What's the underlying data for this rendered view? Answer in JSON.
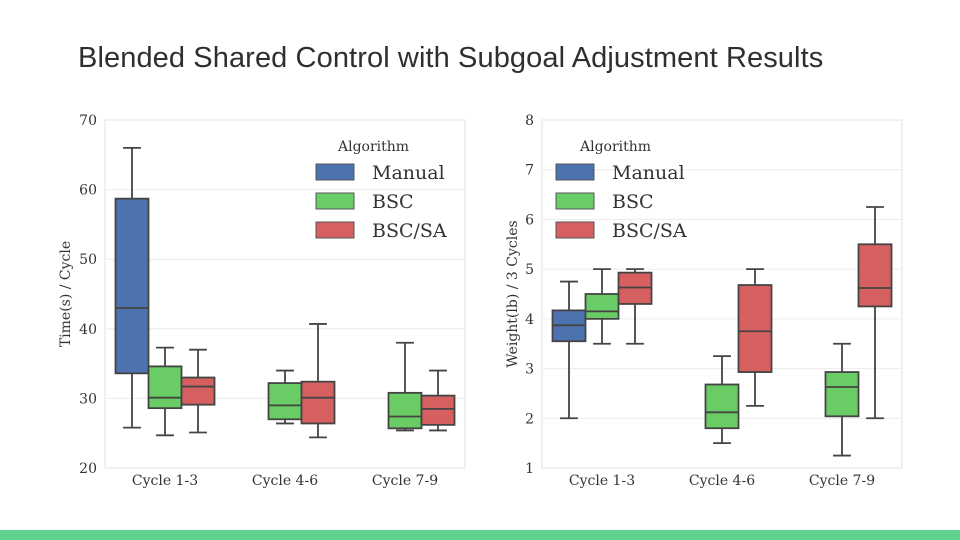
{
  "slide": {
    "title": "Blended Shared Control with Subgoal Adjustment Results",
    "accent_color": "#5fd28e"
  },
  "chart_data": [
    {
      "type": "box",
      "ylabel": "Time(s) / Cycle",
      "xlabel": "",
      "ylim": [
        20,
        70
      ],
      "yticks": [
        20,
        30,
        40,
        50,
        60,
        70
      ],
      "categories": [
        "Cycle 1-3",
        "Cycle 4-6",
        "Cycle 7-9"
      ],
      "legend": {
        "title": "Algorithm",
        "position": "top-right"
      },
      "series": [
        {
          "name": "Manual",
          "color": "#4c72b0",
          "boxes": [
            {
              "category": "Cycle 1-3",
              "min": 25.8,
              "q1": 33.6,
              "median": 43.0,
              "q3": 58.7,
              "max": 66.0
            }
          ]
        },
        {
          "name": "BSC",
          "color": "#6acc65",
          "boxes": [
            {
              "category": "Cycle 1-3",
              "min": 24.7,
              "q1": 28.6,
              "median": 30.1,
              "q3": 34.6,
              "max": 37.3
            },
            {
              "category": "Cycle 4-6",
              "min": 26.4,
              "q1": 27.0,
              "median": 29.0,
              "q3": 32.2,
              "max": 34.0
            },
            {
              "category": "Cycle 7-9",
              "min": 25.4,
              "q1": 25.7,
              "median": 27.4,
              "q3": 30.8,
              "max": 38.0
            }
          ]
        },
        {
          "name": "BSC/SA",
          "color": "#d65f5f",
          "boxes": [
            {
              "category": "Cycle 1-3",
              "min": 25.1,
              "q1": 29.1,
              "median": 31.7,
              "q3": 33.0,
              "max": 37.0
            },
            {
              "category": "Cycle 4-6",
              "min": 24.4,
              "q1": 26.4,
              "median": 30.1,
              "q3": 32.4,
              "max": 40.7
            },
            {
              "category": "Cycle 7-9",
              "min": 25.4,
              "q1": 26.2,
              "median": 28.5,
              "q3": 30.4,
              "max": 34.0
            }
          ]
        }
      ]
    },
    {
      "type": "box",
      "ylabel": "Weight(lb) / 3 Cycles",
      "xlabel": "",
      "ylim": [
        1,
        8
      ],
      "yticks": [
        1,
        2,
        3,
        4,
        5,
        6,
        7,
        8
      ],
      "categories": [
        "Cycle 1-3",
        "Cycle 4-6",
        "Cycle 7-9"
      ],
      "legend": {
        "title": "Algorithm",
        "position": "top-left"
      },
      "series": [
        {
          "name": "Manual",
          "color": "#4c72b0",
          "boxes": [
            {
              "category": "Cycle 1-3",
              "min": 2.0,
              "q1": 3.55,
              "median": 3.87,
              "q3": 4.17,
              "max": 4.75
            }
          ]
        },
        {
          "name": "BSC",
          "color": "#6acc65",
          "boxes": [
            {
              "category": "Cycle 1-3",
              "min": 3.5,
              "q1": 4.0,
              "median": 4.15,
              "q3": 4.5,
              "max": 5.0
            },
            {
              "category": "Cycle 4-6",
              "min": 1.5,
              "q1": 1.8,
              "median": 2.12,
              "q3": 2.68,
              "max": 3.25
            },
            {
              "category": "Cycle 7-9",
              "min": 1.25,
              "q1": 2.04,
              "median": 2.63,
              "q3": 2.93,
              "max": 3.5
            }
          ]
        },
        {
          "name": "BSC/SA",
          "color": "#d65f5f",
          "boxes": [
            {
              "category": "Cycle 1-3",
              "min": 3.5,
              "q1": 4.3,
              "median": 4.63,
              "q3": 4.93,
              "max": 5.0
            },
            {
              "category": "Cycle 4-6",
              "min": 2.25,
              "q1": 2.93,
              "median": 3.75,
              "q3": 4.68,
              "max": 5.0
            },
            {
              "category": "Cycle 7-9",
              "min": 2.0,
              "q1": 4.25,
              "median": 4.62,
              "q3": 5.5,
              "max": 6.25
            }
          ]
        }
      ]
    }
  ]
}
